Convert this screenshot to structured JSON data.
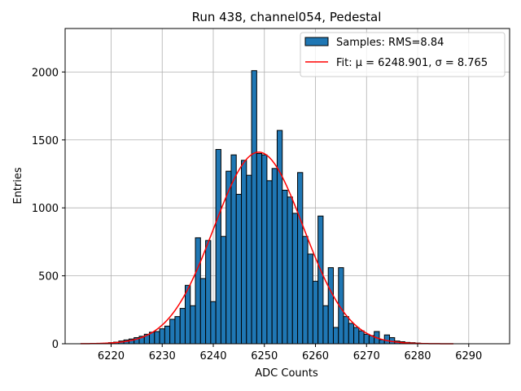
{
  "chart_data": {
    "type": "bar",
    "title": "Run 438, channel054, Pedestal",
    "xlabel": "ADC Counts",
    "ylabel": "Entries",
    "xlim": [
      6211,
      6298
    ],
    "ylim": [
      0,
      2320
    ],
    "xticks": [
      6220,
      6230,
      6240,
      6250,
      6260,
      6270,
      6280,
      6290
    ],
    "yticks": [
      0,
      500,
      1000,
      1500,
      2000
    ],
    "grid": true,
    "legend_position": "top-right",
    "colors": {
      "bars": "#1f77b4",
      "bar_edge": "#000000",
      "fit": "#ff0000"
    },
    "histogram": {
      "name": "Samples: RMS=8.84",
      "bin_width": 1,
      "bins": [
        {
          "x": 6220,
          "y": 8
        },
        {
          "x": 6221,
          "y": 12
        },
        {
          "x": 6222,
          "y": 20
        },
        {
          "x": 6223,
          "y": 28
        },
        {
          "x": 6224,
          "y": 35
        },
        {
          "x": 6225,
          "y": 45
        },
        {
          "x": 6226,
          "y": 55
        },
        {
          "x": 6227,
          "y": 70
        },
        {
          "x": 6228,
          "y": 85
        },
        {
          "x": 6229,
          "y": 90
        },
        {
          "x": 6230,
          "y": 110
        },
        {
          "x": 6231,
          "y": 130
        },
        {
          "x": 6232,
          "y": 180
        },
        {
          "x": 6233,
          "y": 200
        },
        {
          "x": 6234,
          "y": 260
        },
        {
          "x": 6235,
          "y": 430
        },
        {
          "x": 6236,
          "y": 280
        },
        {
          "x": 6237,
          "y": 780
        },
        {
          "x": 6238,
          "y": 480
        },
        {
          "x": 6239,
          "y": 760
        },
        {
          "x": 6240,
          "y": 310
        },
        {
          "x": 6241,
          "y": 1430
        },
        {
          "x": 6242,
          "y": 790
        },
        {
          "x": 6243,
          "y": 1270
        },
        {
          "x": 6244,
          "y": 1390
        },
        {
          "x": 6245,
          "y": 1100
        },
        {
          "x": 6246,
          "y": 1350
        },
        {
          "x": 6247,
          "y": 1240
        },
        {
          "x": 6248,
          "y": 2010
        },
        {
          "x": 6249,
          "y": 1400
        },
        {
          "x": 6250,
          "y": 1390
        },
        {
          "x": 6251,
          "y": 1200
        },
        {
          "x": 6252,
          "y": 1290
        },
        {
          "x": 6253,
          "y": 1570
        },
        {
          "x": 6254,
          "y": 1130
        },
        {
          "x": 6255,
          "y": 1080
        },
        {
          "x": 6256,
          "y": 960
        },
        {
          "x": 6257,
          "y": 1260
        },
        {
          "x": 6258,
          "y": 790
        },
        {
          "x": 6259,
          "y": 660
        },
        {
          "x": 6260,
          "y": 460
        },
        {
          "x": 6261,
          "y": 940
        },
        {
          "x": 6262,
          "y": 280
        },
        {
          "x": 6263,
          "y": 560
        },
        {
          "x": 6264,
          "y": 120
        },
        {
          "x": 6265,
          "y": 560
        },
        {
          "x": 6266,
          "y": 200
        },
        {
          "x": 6267,
          "y": 150
        },
        {
          "x": 6268,
          "y": 120
        },
        {
          "x": 6269,
          "y": 95
        },
        {
          "x": 6270,
          "y": 70
        },
        {
          "x": 6271,
          "y": 60
        },
        {
          "x": 6272,
          "y": 90
        },
        {
          "x": 6273,
          "y": 30
        },
        {
          "x": 6274,
          "y": 65
        },
        {
          "x": 6275,
          "y": 45
        },
        {
          "x": 6276,
          "y": 20
        },
        {
          "x": 6277,
          "y": 15
        },
        {
          "x": 6278,
          "y": 10
        },
        {
          "x": 6279,
          "y": 8
        },
        {
          "x": 6280,
          "y": 5
        },
        {
          "x": 6281,
          "y": 3
        }
      ]
    },
    "fit": {
      "name": "Fit: μ = 6248.901, σ = 8.765",
      "mu": 6248.901,
      "sigma": 8.765,
      "amplitude": 1410,
      "x_range": [
        6214,
        6287
      ]
    }
  }
}
